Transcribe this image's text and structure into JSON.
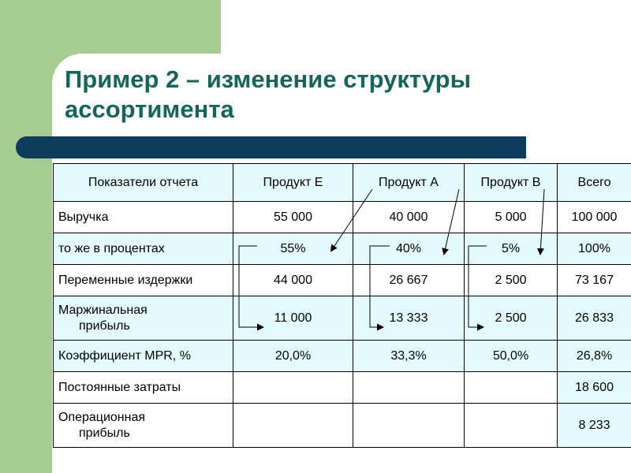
{
  "slide": {
    "title_line1": "Пример 2 – изменение структуры",
    "title_line2": "ассортимента"
  },
  "table": {
    "headers": [
      "Показатели отчета",
      "Продукт Е",
      "Продукт А",
      "Продукт В",
      "Всего"
    ],
    "rows": [
      {
        "label": "Выручка",
        "values": [
          "55 000",
          "40 000",
          "5 000",
          "100 000"
        ]
      },
      {
        "label": "то же в процентах",
        "values": [
          "55%",
          "40%",
          "5%",
          "100%"
        ]
      },
      {
        "label": "Переменные  издержки",
        "values": [
          "44 000",
          "26 667",
          "2 500",
          "73 167"
        ]
      },
      {
        "label_line1": "Маржинальная",
        "label_line2": "прибыль",
        "values": [
          "11 000",
          "13 333",
          "2 500",
          "26 833"
        ]
      },
      {
        "label": "Коэффициент  MPR, %",
        "values": [
          "20,0%",
          "33,3%",
          "50,0%",
          "26,8%"
        ]
      },
      {
        "label": "Постоянные  затраты",
        "values": [
          "",
          "",
          "",
          "18 600"
        ]
      },
      {
        "label_line1": "Операционная",
        "label_line2": "прибыль",
        "values": [
          "",
          "",
          "",
          "8 233"
        ]
      }
    ]
  },
  "colors": {
    "accent_green": "#a6cc8f",
    "title_teal": "#15655a",
    "bar_navy": "#0c3b5e",
    "row_cyan": "#e3fbfc"
  }
}
